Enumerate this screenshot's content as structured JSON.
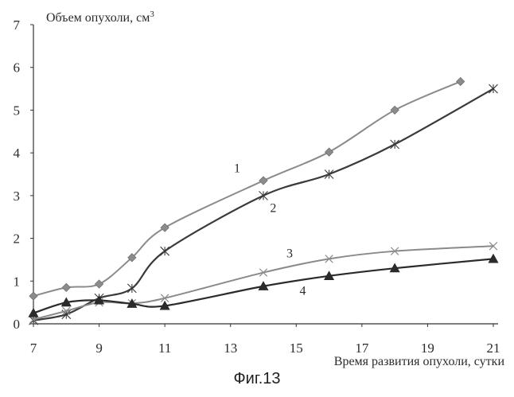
{
  "figure": {
    "caption": "Фиг.13"
  },
  "chart_data": {
    "type": "line",
    "title": "",
    "ylabel_main": "Объем опухоли, см",
    "ylabel_sup": "3",
    "xlabel": "Время развития опухоли, сутки",
    "xlim": [
      7,
      21
    ],
    "ylim": [
      0,
      7
    ],
    "xticks": [
      7,
      9,
      11,
      13,
      15,
      17,
      19,
      21
    ],
    "yticks": [
      0,
      1,
      2,
      3,
      4,
      5,
      6,
      7
    ],
    "series": [
      {
        "name": "1",
        "marker": "diamond",
        "color": "#8b8b8b",
        "points": [
          {
            "x": 7,
            "y": 0.65
          },
          {
            "x": 8,
            "y": 0.85
          },
          {
            "x": 9,
            "y": 0.93
          },
          {
            "x": 10,
            "y": 1.55
          },
          {
            "x": 11,
            "y": 2.25
          },
          {
            "x": 14,
            "y": 3.35
          },
          {
            "x": 16,
            "y": 4.02
          },
          {
            "x": 18,
            "y": 5.0
          },
          {
            "x": 20,
            "y": 5.67
          }
        ]
      },
      {
        "name": "2",
        "marker": "asterisk",
        "color": "#3a3a3a",
        "points": [
          {
            "x": 7,
            "y": 0.08
          },
          {
            "x": 8,
            "y": 0.22
          },
          {
            "x": 9,
            "y": 0.6
          },
          {
            "x": 10,
            "y": 0.83
          },
          {
            "x": 11,
            "y": 1.7
          },
          {
            "x": 14,
            "y": 3.0
          },
          {
            "x": 16,
            "y": 3.5
          },
          {
            "x": 18,
            "y": 4.2
          },
          {
            "x": 21,
            "y": 5.5
          }
        ]
      },
      {
        "name": "3",
        "marker": "cross",
        "color": "#8a8a8a",
        "points": [
          {
            "x": 7,
            "y": 0.1
          },
          {
            "x": 8,
            "y": 0.3
          },
          {
            "x": 9,
            "y": 0.5
          },
          {
            "x": 10,
            "y": 0.48
          },
          {
            "x": 11,
            "y": 0.6
          },
          {
            "x": 14,
            "y": 1.2
          },
          {
            "x": 16,
            "y": 1.52
          },
          {
            "x": 18,
            "y": 1.7
          },
          {
            "x": 21,
            "y": 1.82
          }
        ]
      },
      {
        "name": "4",
        "marker": "triangle",
        "color": "#2b2b2b",
        "points": [
          {
            "x": 7,
            "y": 0.25
          },
          {
            "x": 8,
            "y": 0.5
          },
          {
            "x": 9,
            "y": 0.55
          },
          {
            "x": 10,
            "y": 0.47
          },
          {
            "x": 11,
            "y": 0.42
          },
          {
            "x": 14,
            "y": 0.88
          },
          {
            "x": 16,
            "y": 1.12
          },
          {
            "x": 18,
            "y": 1.3
          },
          {
            "x": 21,
            "y": 1.52
          }
        ]
      }
    ],
    "annotations": [
      {
        "text": "1",
        "x": 13.2,
        "y": 3.55
      },
      {
        "text": "2",
        "x": 14.3,
        "y": 2.62
      },
      {
        "text": "3",
        "x": 14.8,
        "y": 1.55
      },
      {
        "text": "4",
        "x": 15.2,
        "y": 0.68
      }
    ]
  }
}
